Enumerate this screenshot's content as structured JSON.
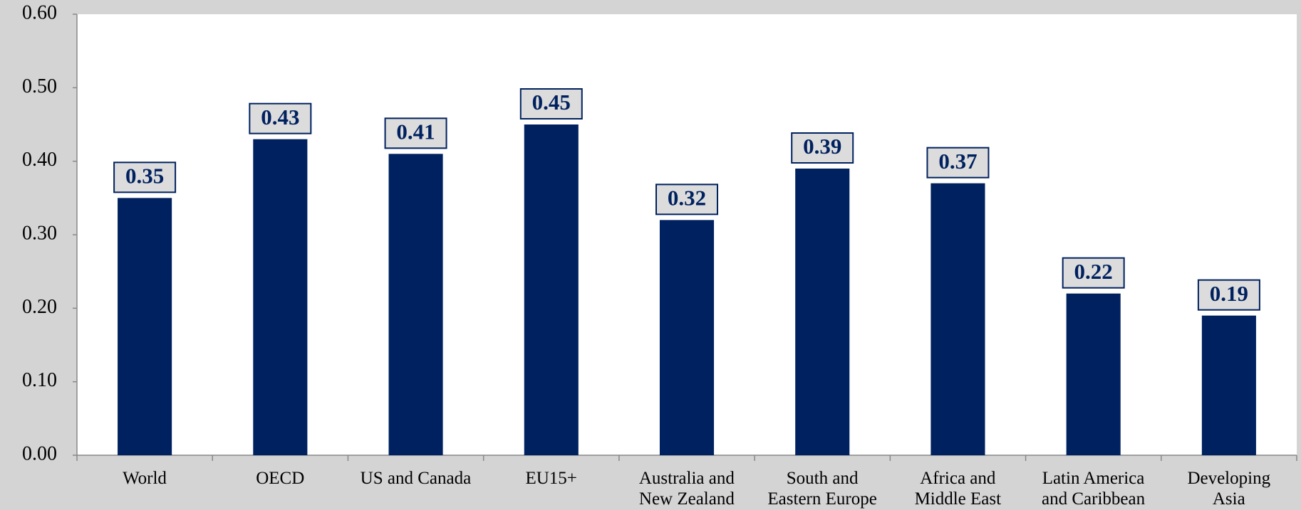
{
  "chart_data": {
    "type": "bar",
    "categories": [
      "World",
      "OECD",
      "US and Canada",
      "EU15+",
      "Australia and\nNew Zealand",
      "South and\nEastern Europe",
      "Africa and\nMiddle East",
      "Latin America\nand Caribbean",
      "Developing\nAsia"
    ],
    "values": [
      0.35,
      0.43,
      0.41,
      0.45,
      0.32,
      0.39,
      0.37,
      0.22,
      0.19
    ],
    "color": "#00215f",
    "ylim": [
      0,
      0.6
    ],
    "yticks": [
      {
        "value": 0,
        "label": "0.00"
      },
      {
        "value": 0.1,
        "label": "0.10"
      },
      {
        "value": 0.2,
        "label": "0.20"
      },
      {
        "value": 0.3,
        "label": "0.30"
      },
      {
        "value": 0.4,
        "label": "0.40"
      },
      {
        "value": 0.5,
        "label": "0.50"
      },
      {
        "value": 0.6,
        "label": "0.60"
      }
    ],
    "grid": false
  }
}
